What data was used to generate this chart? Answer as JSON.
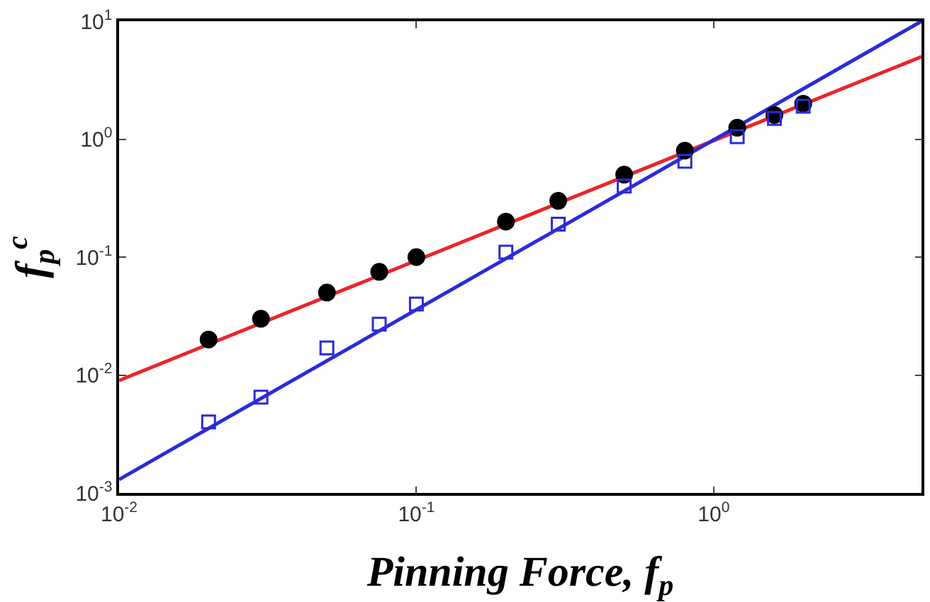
{
  "chart_data": {
    "type": "scatter",
    "log": "xy",
    "xlabel": "Pinning Force, f$_{p}$",
    "ylabel": "f$_{p}$$^{c}$",
    "xlim": [
      0.01,
      5
    ],
    "ylim": [
      0.001,
      10
    ],
    "xticks": [
      {
        "value": 0.01,
        "label": "10$^{-2}$"
      },
      {
        "value": 0.1,
        "label": "10$^{-1}$"
      },
      {
        "value": 1,
        "label": "10$^{0}$"
      }
    ],
    "yticks": [
      {
        "value": 0.001,
        "label": "10$^{-3}$"
      },
      {
        "value": 0.01,
        "label": "10$^{-2}$"
      },
      {
        "value": 0.1,
        "label": "10$^{-1}$"
      },
      {
        "value": 1,
        "label": "10$^{0}$"
      },
      {
        "value": 10,
        "label": "10$^{1}$"
      }
    ],
    "series": [
      {
        "type": "line",
        "color": "#e8262a",
        "marker": "none",
        "x": [
          0.01,
          5
        ],
        "values": [
          0.009,
          5
        ]
      },
      {
        "type": "line",
        "color": "#2b2bd9",
        "marker": "none",
        "x": [
          0.01,
          5
        ],
        "values": [
          0.0013,
          10
        ]
      },
      {
        "color": "#000000",
        "marker": "circle",
        "x": [
          0.02,
          0.03,
          0.05,
          0.075,
          0.1,
          0.2,
          0.3,
          0.5,
          0.8,
          1.2,
          1.6,
          2.0
        ],
        "values": [
          0.02,
          0.03,
          0.05,
          0.075,
          0.1,
          0.2,
          0.3,
          0.5,
          0.8,
          1.25,
          1.6,
          2.0
        ]
      },
      {
        "color": "#2b2bd9",
        "marker": "square",
        "x": [
          0.02,
          0.03,
          0.05,
          0.075,
          0.1,
          0.2,
          0.3,
          0.5,
          0.8,
          1.2,
          1.6,
          2.0
        ],
        "values": [
          0.004,
          0.0065,
          0.017,
          0.027,
          0.04,
          0.11,
          0.19,
          0.4,
          0.65,
          1.05,
          1.5,
          1.9
        ]
      }
    ]
  }
}
